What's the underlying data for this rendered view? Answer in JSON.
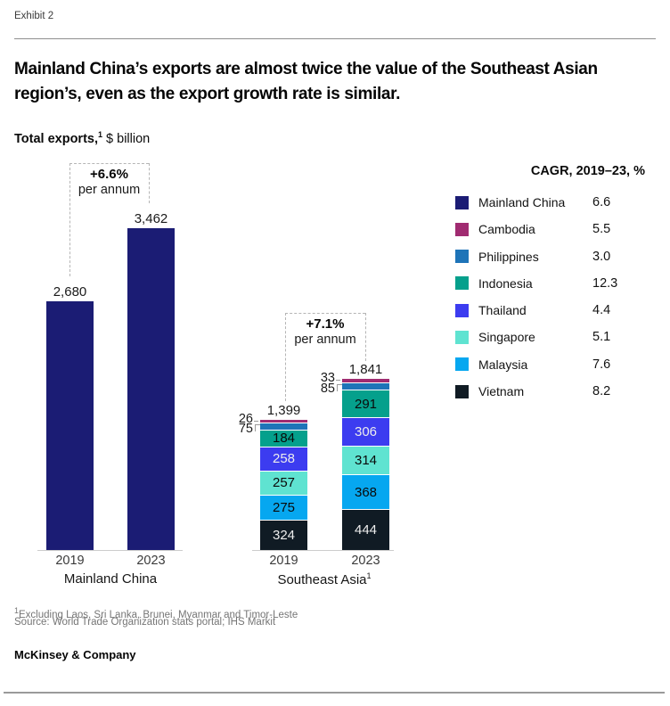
{
  "header": {
    "exhibit": "Exhibit 2",
    "title_line1": "Mainland China’s exports are almost twice the value of the Southeast Asian",
    "title_line2": "region’s, even as the export growth rate is similar.",
    "subtitle": {
      "bold": "Total exports,",
      "sup": "1",
      "rest": " $ billion"
    }
  },
  "chart_data": {
    "type": "bar",
    "title": "Total exports, $ billion",
    "unit": "$ billion",
    "value_axis_visible": false,
    "groups": [
      {
        "caption": "Mainland China",
        "annotation": {
          "rate": "+6.6%",
          "per": "per annum"
        },
        "series": "Mainland China",
        "bars": [
          {
            "year": "2019",
            "value": 2680,
            "label": "2,680"
          },
          {
            "year": "2023",
            "value": 3462,
            "label": "3,462"
          }
        ]
      },
      {
        "caption": "Southeast Asia",
        "caption_sup": "1",
        "annotation": {
          "rate": "+7.1%",
          "per": "per annum"
        },
        "bars": [
          {
            "year": "2019",
            "total": 1399,
            "total_label": "1,399",
            "segments_bottom_to_top": [
              {
                "name": "Vietnam",
                "value": 324
              },
              {
                "name": "Malaysia",
                "value": 275
              },
              {
                "name": "Singapore",
                "value": 257
              },
              {
                "name": "Thailand",
                "value": 258
              },
              {
                "name": "Indonesia",
                "value": 184
              },
              {
                "name": "Philippines",
                "value": 75
              },
              {
                "name": "Cambodia",
                "value": 26
              }
            ]
          },
          {
            "year": "2023",
            "total": 1841,
            "total_label": "1,841",
            "segments_bottom_to_top": [
              {
                "name": "Vietnam",
                "value": 444
              },
              {
                "name": "Malaysia",
                "value": 368
              },
              {
                "name": "Singapore",
                "value": 314
              },
              {
                "name": "Thailand",
                "value": 306
              },
              {
                "name": "Indonesia",
                "value": 291
              },
              {
                "name": "Philippines",
                "value": 85
              },
              {
                "name": "Cambodia",
                "value": 33
              }
            ]
          }
        ]
      }
    ]
  },
  "legend": {
    "header": "CAGR, 2019–23, %",
    "items": [
      {
        "name": "Mainland China",
        "cagr": "6.6",
        "color": "#1b1c74",
        "text_on_color": "light"
      },
      {
        "name": "Cambodia",
        "cagr": "5.5",
        "color": "#a02b71",
        "text_on_color": "light"
      },
      {
        "name": "Philippines",
        "cagr": "3.0",
        "color": "#1e74b8",
        "text_on_color": "light"
      },
      {
        "name": "Indonesia",
        "cagr": "12.3",
        "color": "#05a08c",
        "text_on_color": "dark"
      },
      {
        "name": "Thailand",
        "cagr": "4.4",
        "color": "#3c3cf0",
        "text_on_color": "light"
      },
      {
        "name": "Singapore",
        "cagr": "5.1",
        "color": "#5fe3d1",
        "text_on_color": "dark"
      },
      {
        "name": "Malaysia",
        "cagr": "7.6",
        "color": "#06a7f0",
        "text_on_color": "dark"
      },
      {
        "name": "Vietnam",
        "cagr": "8.2",
        "color": "#101b24",
        "text_on_color": "light"
      }
    ]
  },
  "footnotes": {
    "sup": "1",
    "note": "Excluding Laos, Sri Lanka, Brunei, Myanmar and Timor-Leste",
    "source": "Source: World Trade Organization stats portal; IHS Markit"
  },
  "brand": "McKinsey & Company"
}
